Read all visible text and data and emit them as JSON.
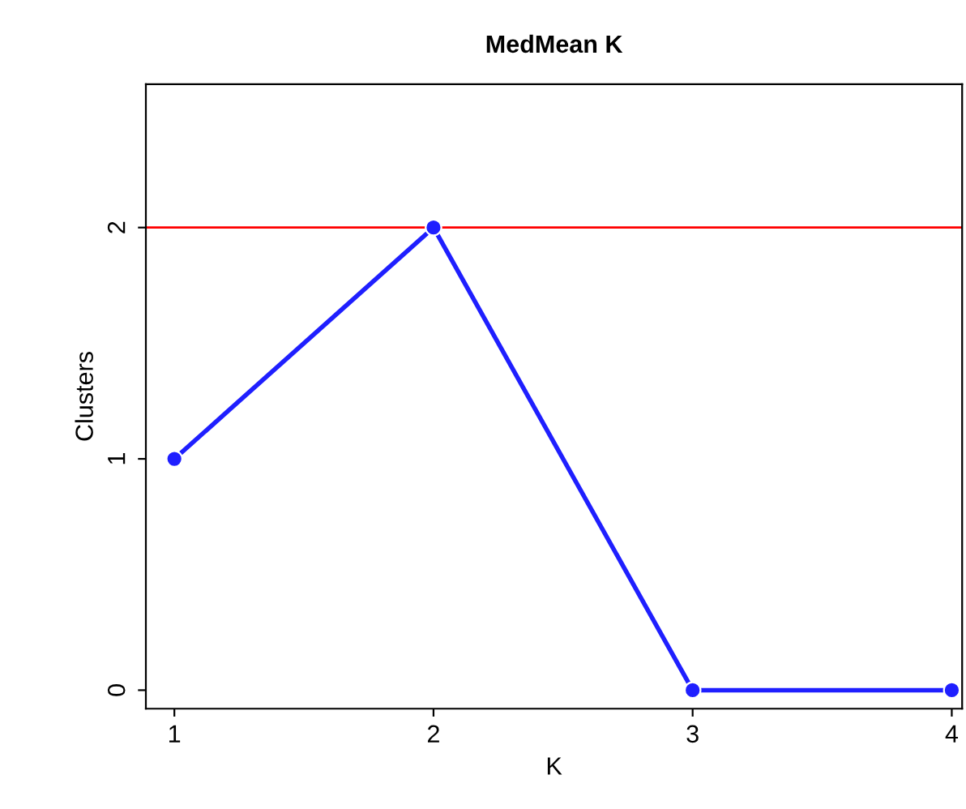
{
  "chart_data": {
    "type": "line",
    "title": "MedMean K",
    "xlabel": "K",
    "ylabel": "Clusters",
    "x": [
      1,
      2,
      3,
      4
    ],
    "series": [
      {
        "color": "#1f1fff",
        "values": [
          1,
          2,
          0,
          0
        ]
      }
    ],
    "marker": "circle",
    "line_style": "solid",
    "xlim": [
      0.89,
      4.04
    ],
    "ylim": [
      -0.08,
      2.62
    ],
    "xticks": [
      1,
      2,
      3,
      4
    ],
    "yticks": [
      0,
      1,
      2
    ],
    "ref_lines": [
      {
        "axis": "y",
        "value": 2,
        "color": "#ff0000"
      }
    ],
    "grid": false,
    "legend": false
  }
}
